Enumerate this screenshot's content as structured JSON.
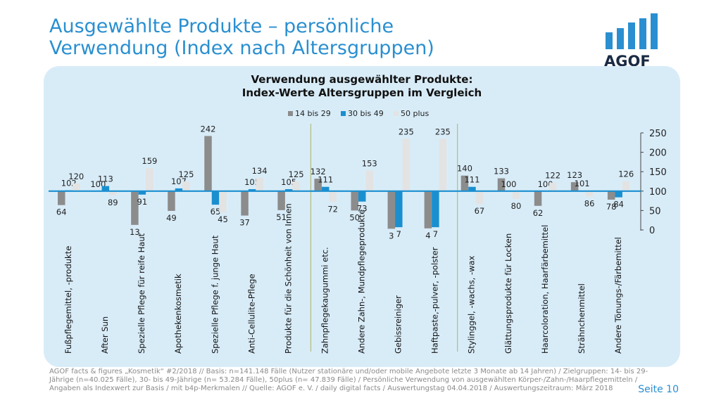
{
  "page": {
    "title_line1": "Ausgewählte Produkte – persönliche",
    "title_line2": "Verwendung (Index nach Altersgruppen)",
    "logo_text": "AGOF",
    "footer_line1": "AGOF facts & figures „Kosmetik“ #2/2018 // Basis: n=141.148 Fälle (Nutzer stationäre und/oder mobile Angebote letzte 3 Monate ab 14 Jahren) / Zielgruppen: 14- bis 29-",
    "footer_line2": "Jährige (n=40.025 Fälle), 30- bis 49-Jährige (n= 53.284 Fälle), 50plus (n= 47.839 Fälle) / Persönliche Verwendung von ausgewählten Körper-/Zahn-/Haarpflegemitteln /",
    "footer_line3": "Angaben als Indexwert zur Basis / mit b4p-Merkmalen // Quelle: AGOF e. V. / daily digital facts / Auswertungstag 04.04.2018 / Auswertungszeitraum: März 2018",
    "page_number": "Seite 10"
  },
  "colors": {
    "series": [
      "#8c8c8c",
      "#1a8fd0",
      "#e3e3e3"
    ],
    "title": "#2a8fd0",
    "baseline": "#1a8fd0",
    "separator": "#b5c080"
  },
  "chart_data": {
    "type": "bar",
    "title_line1": "Verwendung ausgewählter Produkte:",
    "title_line2": "Index-Werte Altersgruppen im Vergleich",
    "baseline": 100,
    "ylim": [
      0,
      250
    ],
    "yticks": [
      0,
      50,
      100,
      150,
      200,
      250
    ],
    "categories": [
      "Fußpflegemittel, -produkte",
      "After Sun",
      "Spezielle Pflege für reife Haut",
      "Apothekenkosmetik",
      "Spezielle Pflege f. junge Haut",
      "Anti-Cellulite-Pflege",
      "Produkte für die Schönheit von Innen",
      "Zahnpflegekaugummi etc.",
      "Andere Zahn-, Mundpflegeprodukte",
      "Gebissreiniger",
      "Haftpaste,-pulver, -polster",
      "Stylinggel, -wachs, -wax",
      "Glättungsprodukte für Locken",
      "Haarcoloration, Haarfärbemittel",
      "Strähnchenmittel",
      "Andere Tönungs-/Färbemittel"
    ],
    "series": [
      {
        "name": "14 bis 29",
        "values": [
          64,
          100,
          13,
          49,
          242,
          37,
          51,
          132,
          50,
          3,
          4,
          140,
          133,
          62,
          123,
          78
        ]
      },
      {
        "name": "30 bis 49",
        "values": [
          102,
          113,
          91,
          107,
          65,
          105,
          105,
          111,
          73,
          7,
          7,
          111,
          100,
          100,
          101,
          84
        ]
      },
      {
        "name": "50 plus",
        "values": [
          120,
          89,
          159,
          125,
          45,
          134,
          125,
          72,
          153,
          235,
          235,
          67,
          80,
          122,
          86,
          126
        ]
      }
    ],
    "separators_after": [
      6,
      10
    ]
  }
}
